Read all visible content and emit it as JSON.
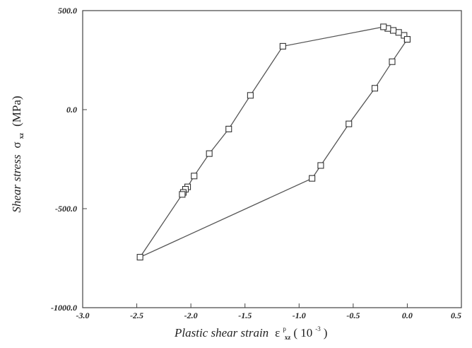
{
  "chart_data": {
    "type": "line",
    "xlim": [
      -3.0,
      0.5
    ],
    "ylim": [
      -1000.0,
      500.0
    ],
    "xticks": [
      "-3.0",
      "-2.5",
      "-2.0",
      "-1.5",
      "-1.0",
      "-0.5",
      "0.0",
      "0.5"
    ],
    "yticks": [
      "500.0",
      "0.0",
      "-500.0",
      "-1000.0"
    ],
    "xlabel": {
      "text": "Plastic shear strain",
      "symbol": "ε",
      "superscript": "p",
      "subscript": "xz",
      "unit_open": "( 10",
      "unit_exponent": "-3",
      "unit_close": ")"
    },
    "ylabel": {
      "text": "Shear stress",
      "symbol": "σ",
      "subscript": "xz",
      "unit": "(MPa)"
    },
    "grid": false,
    "marker": "open-square",
    "line_color": "#555555",
    "series": [
      {
        "x": [
          0.0,
          -0.03,
          -0.08,
          -0.13,
          -0.18,
          -0.22,
          -1.15,
          -1.45,
          -1.65,
          -1.83,
          -1.97,
          -2.03,
          -2.05,
          -2.07,
          -2.08,
          -2.47,
          -0.88,
          -0.8,
          -0.54,
          -0.3,
          -0.14,
          0.0
        ],
        "y": [
          355,
          375,
          390,
          400,
          410,
          418,
          320,
          72,
          -98,
          -222,
          -335,
          -390,
          -402,
          -418,
          -428,
          -745,
          -347,
          -282,
          -72,
          108,
          242,
          355
        ]
      }
    ]
  }
}
